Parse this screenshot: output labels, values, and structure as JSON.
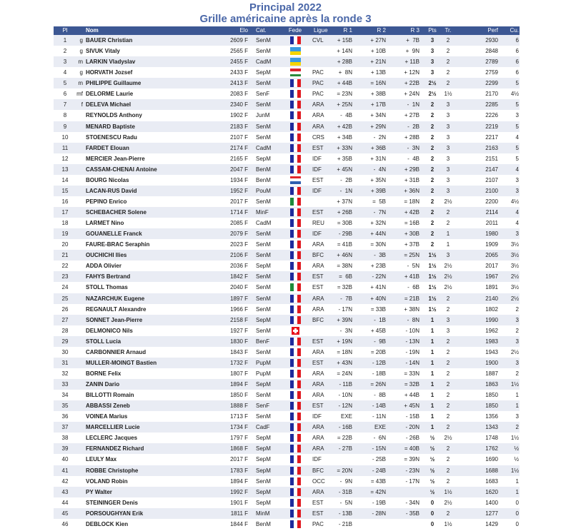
{
  "title": "Principal 2022",
  "subtitle": "Grille américaine après la ronde 3",
  "columns": {
    "pl": "Pl",
    "nom": "Nom",
    "elo": "Elo",
    "cat": "Cat.",
    "fede": "Fede",
    "ligue": "Ligue",
    "r1": "R 1",
    "r2": "R 2",
    "r3": "R 3",
    "pts": "Pts",
    "tr": "Tr.",
    "perf": "Perf",
    "cu": "Cu."
  },
  "rows": [
    {
      "pl": "1",
      "titre": "g",
      "nom": "BAUER Christian",
      "elo": "2609 F",
      "cat": "SenM",
      "fede": "FRA",
      "ligue": "CVL",
      "r1": "+ 15B",
      "r2": "+ 27N",
      "r3": "+  7B",
      "pts": "3",
      "tr": "2",
      "perf": "2930",
      "cu": "6"
    },
    {
      "pl": "2",
      "titre": "g",
      "nom": "SIVUK Vitaly",
      "elo": "2565 F",
      "cat": "SenM",
      "fede": "UKR",
      "ligue": "",
      "r1": "+ 14N",
      "r2": "+ 10B",
      "r3": "+  9N",
      "pts": "3",
      "tr": "2",
      "perf": "2848",
      "cu": "6"
    },
    {
      "pl": "3",
      "titre": "m",
      "nom": "LARKIN Vladyslav",
      "elo": "2455 F",
      "cat": "CadM",
      "fede": "UKR",
      "ligue": "",
      "r1": "+ 28B",
      "r2": "+ 21N",
      "r3": "+ 11B",
      "pts": "3",
      "tr": "2",
      "perf": "2789",
      "cu": "6"
    },
    {
      "pl": "4",
      "titre": "g",
      "nom": "HORVATH Jozsef",
      "elo": "2433 F",
      "cat": "SepM",
      "fede": "HUN",
      "ligue": "PAC",
      "r1": "+  8N",
      "r2": "+ 13B",
      "r3": "+ 12N",
      "pts": "3",
      "tr": "2",
      "perf": "2759",
      "cu": "6"
    },
    {
      "pl": "5",
      "titre": "m",
      "nom": "PHILIPPE Guillaume",
      "elo": "2413 F",
      "cat": "SenM",
      "fede": "FRA",
      "ligue": "PAC",
      "r1": "+ 44B",
      "r2": "= 16N",
      "r3": "+ 22B",
      "pts": "2½",
      "tr": "2",
      "perf": "2299",
      "cu": "5"
    },
    {
      "pl": "6",
      "titre": "mf",
      "nom": "DELORME Laurie",
      "elo": "2083 F",
      "cat": "SenF",
      "fede": "FRA",
      "ligue": "PAC",
      "r1": "= 23N",
      "r2": "+ 38B",
      "r3": "+ 24N",
      "pts": "2½",
      "tr": "1½",
      "perf": "2170",
      "cu": "4½"
    },
    {
      "pl": "7",
      "titre": "f",
      "nom": "DELEVA Michael",
      "elo": "2340 F",
      "cat": "SenM",
      "fede": "FRA",
      "ligue": "ARA",
      "r1": "+ 25N",
      "r2": "+ 17B",
      "r3": "-  1N",
      "pts": "2",
      "tr": "3",
      "perf": "2285",
      "cu": "5"
    },
    {
      "pl": "8",
      "titre": "",
      "nom": "REYNOLDS Anthony",
      "elo": "1902 F",
      "cat": "JunM",
      "fede": "FRA",
      "ligue": "ARA",
      "r1": "-  4B",
      "r2": "+ 34N",
      "r3": "+ 27B",
      "pts": "2",
      "tr": "3",
      "perf": "2226",
      "cu": "3"
    },
    {
      "pl": "9",
      "titre": "",
      "nom": "MENARD Baptiste",
      "elo": "2183 F",
      "cat": "SenM",
      "fede": "FRA",
      "ligue": "ARA",
      "r1": "+ 42B",
      "r2": "+ 29N",
      "r3": "-  2B",
      "pts": "2",
      "tr": "3",
      "perf": "2219",
      "cu": "5"
    },
    {
      "pl": "10",
      "titre": "",
      "nom": "STOENESCU Radu",
      "elo": "2107 F",
      "cat": "SenM",
      "fede": "FRA",
      "ligue": "CRS",
      "r1": "+ 34B",
      "r2": "-  2N",
      "r3": "+ 28B",
      "pts": "2",
      "tr": "3",
      "perf": "2217",
      "cu": "4"
    },
    {
      "pl": "11",
      "titre": "",
      "nom": "FARDET Elouan",
      "elo": "2174 F",
      "cat": "CadM",
      "fede": "FRA",
      "ligue": "EST",
      "r1": "+ 33N",
      "r2": "+ 36B",
      "r3": "-  3N",
      "pts": "2",
      "tr": "3",
      "perf": "2163",
      "cu": "5"
    },
    {
      "pl": "12",
      "titre": "",
      "nom": "MERCIER Jean-Pierre",
      "elo": "2165 F",
      "cat": "SepM",
      "fede": "FRA",
      "ligue": "IDF",
      "r1": "+ 35B",
      "r2": "+ 31N",
      "r3": "-  4B",
      "pts": "2",
      "tr": "3",
      "perf": "2151",
      "cu": "5"
    },
    {
      "pl": "13",
      "titre": "",
      "nom": "CASSAM-CHENAI Antoine",
      "elo": "2047 F",
      "cat": "BenM",
      "fede": "FRA",
      "ligue": "IDF",
      "r1": "+ 45N",
      "r2": "-  4N",
      "r3": "+ 29B",
      "pts": "2",
      "tr": "3",
      "perf": "2147",
      "cu": "4"
    },
    {
      "pl": "14",
      "titre": "",
      "nom": "BOURG Nicolas",
      "elo": "1934 F",
      "cat": "BenM",
      "fede": "NED",
      "ligue": "EST",
      "r1": "-  2B",
      "r2": "+ 35N",
      "r3": "+ 31B",
      "pts": "2",
      "tr": "3",
      "perf": "2107",
      "cu": "3"
    },
    {
      "pl": "15",
      "titre": "",
      "nom": "LACAN-RUS David",
      "elo": "1952 F",
      "cat": "PouM",
      "fede": "FRA",
      "ligue": "IDF",
      "r1": "-  1N",
      "r2": "+ 39B",
      "r3": "+ 36N",
      "pts": "2",
      "tr": "3",
      "perf": "2100",
      "cu": "3"
    },
    {
      "pl": "16",
      "titre": "",
      "nom": "PEPINO Enrico",
      "elo": "2017 F",
      "cat": "SenM",
      "fede": "ITA",
      "ligue": "",
      "r1": "+ 37N",
      "r2": "=  5B",
      "r3": "= 18N",
      "pts": "2",
      "tr": "2½",
      "perf": "2200",
      "cu": "4½"
    },
    {
      "pl": "17",
      "titre": "",
      "nom": "SCHEBACHER Solene",
      "elo": "1714 F",
      "cat": "MinF",
      "fede": "FRA",
      "ligue": "EST",
      "r1": "+ 26B",
      "r2": "-  7N",
      "r3": "+ 42B",
      "pts": "2",
      "tr": "2",
      "perf": "2114",
      "cu": "4"
    },
    {
      "pl": "18",
      "titre": "",
      "nom": "LARMET Nino",
      "elo": "2085 F",
      "cat": "CadM",
      "fede": "FRA",
      "ligue": "REU",
      "r1": "= 30B",
      "r2": "+ 32N",
      "r3": "= 16B",
      "pts": "2",
      "tr": "2",
      "perf": "2011",
      "cu": "4"
    },
    {
      "pl": "19",
      "titre": "",
      "nom": "GOUANELLE Franck",
      "elo": "2079 F",
      "cat": "SenM",
      "fede": "FRA",
      "ligue": "IDF",
      "r1": "- 29B",
      "r2": "+ 44N",
      "r3": "+ 30B",
      "pts": "2",
      "tr": "1",
      "perf": "1980",
      "cu": "3"
    },
    {
      "pl": "20",
      "titre": "",
      "nom": "FAURE-BRAC Seraphin",
      "elo": "2023 F",
      "cat": "SenM",
      "fede": "FRA",
      "ligue": "ARA",
      "r1": "= 41B",
      "r2": "= 30N",
      "r3": "+ 37B",
      "pts": "2",
      "tr": "1",
      "perf": "1909",
      "cu": "3½"
    },
    {
      "pl": "21",
      "titre": "",
      "nom": "OUCHICHI Ilies",
      "elo": "2106 F",
      "cat": "SenM",
      "fede": "FRA",
      "ligue": "BFC",
      "r1": "+ 46N",
      "r2": "-  3B",
      "r3": "= 25N",
      "pts": "1½",
      "tr": "3",
      "perf": "2065",
      "cu": "3½"
    },
    {
      "pl": "22",
      "titre": "",
      "nom": "ADDA Olivier",
      "elo": "2036 F",
      "cat": "SepM",
      "fede": "FRA",
      "ligue": "ARA",
      "r1": "= 38N",
      "r2": "+ 23B",
      "r3": "-  5N",
      "pts": "1½",
      "tr": "2½",
      "perf": "2017",
      "cu": "3½"
    },
    {
      "pl": "23",
      "titre": "",
      "nom": "FAHYS Bertrand",
      "elo": "1842 F",
      "cat": "SenM",
      "fede": "FRA",
      "ligue": "EST",
      "r1": "=  6B",
      "r2": "- 22N",
      "r3": "+ 41B",
      "pts": "1½",
      "tr": "2½",
      "perf": "1967",
      "cu": "2½"
    },
    {
      "pl": "24",
      "titre": "",
      "nom": "STOLL Thomas",
      "elo": "2040 F",
      "cat": "SenM",
      "fede": "ITA",
      "ligue": "EST",
      "r1": "= 32B",
      "r2": "+ 41N",
      "r3": "-  6B",
      "pts": "1½",
      "tr": "2½",
      "perf": "1891",
      "cu": "3½"
    },
    {
      "pl": "25",
      "titre": "",
      "nom": "NAZARCHUK Eugene",
      "elo": "1897 F",
      "cat": "SenM",
      "fede": "FRA",
      "ligue": "ARA",
      "r1": "-  7B",
      "r2": "+ 40N",
      "r3": "= 21B",
      "pts": "1½",
      "tr": "2",
      "perf": "2140",
      "cu": "2½"
    },
    {
      "pl": "26",
      "titre": "",
      "nom": "REGNAULT Alexandre",
      "elo": "1966 F",
      "cat": "SenM",
      "fede": "FRA",
      "ligue": "ARA",
      "r1": "- 17N",
      "r2": "= 33B",
      "r3": "+ 38N",
      "pts": "1½",
      "tr": "2",
      "perf": "1802",
      "cu": "2"
    },
    {
      "pl": "27",
      "titre": "",
      "nom": "SONNET Jean-Pierre",
      "elo": "2158 F",
      "cat": "SepM",
      "fede": "FRA",
      "ligue": "BFC",
      "r1": "+ 39N",
      "r2": "-  1B",
      "r3": "-  8N",
      "pts": "1",
      "tr": "3",
      "perf": "1990",
      "cu": "3"
    },
    {
      "pl": "28",
      "titre": "",
      "nom": "DELMONICO Nils",
      "elo": "1927 F",
      "cat": "SenM",
      "fede": "SUI",
      "ligue": "",
      "r1": "-  3N",
      "r2": "+ 45B",
      "r3": "- 10N",
      "pts": "1",
      "tr": "3",
      "perf": "1962",
      "cu": "2"
    },
    {
      "pl": "29",
      "titre": "",
      "nom": "STOLL Lucia",
      "elo": "1830 F",
      "cat": "BenF",
      "fede": "FRA",
      "ligue": "EST",
      "r1": "+ 19N",
      "r2": "-  9B",
      "r3": "- 13N",
      "pts": "1",
      "tr": "2",
      "perf": "1983",
      "cu": "3"
    },
    {
      "pl": "30",
      "titre": "",
      "nom": "CARBONNIER Arnaud",
      "elo": "1843 F",
      "cat": "SenM",
      "fede": "FRA",
      "ligue": "ARA",
      "r1": "= 18N",
      "r2": "= 20B",
      "r3": "- 19N",
      "pts": "1",
      "tr": "2",
      "perf": "1943",
      "cu": "2½"
    },
    {
      "pl": "31",
      "titre": "",
      "nom": "MULLER-MOINGT Bastien",
      "elo": "1732 F",
      "cat": "PupM",
      "fede": "FRA",
      "ligue": "EST",
      "r1": "+ 43N",
      "r2": "- 12B",
      "r3": "- 14N",
      "pts": "1",
      "tr": "2",
      "perf": "1900",
      "cu": "3"
    },
    {
      "pl": "32",
      "titre": "",
      "nom": "BORNE Felix",
      "elo": "1807 F",
      "cat": "PupM",
      "fede": "FRA",
      "ligue": "ARA",
      "r1": "= 24N",
      "r2": "- 18B",
      "r3": "= 33N",
      "pts": "1",
      "tr": "2",
      "perf": "1887",
      "cu": "2"
    },
    {
      "pl": "33",
      "titre": "",
      "nom": "ZANIN Dario",
      "elo": "1894 F",
      "cat": "SepM",
      "fede": "FRA",
      "ligue": "ARA",
      "r1": "- 11B",
      "r2": "= 26N",
      "r3": "= 32B",
      "pts": "1",
      "tr": "2",
      "perf": "1863",
      "cu": "1½"
    },
    {
      "pl": "34",
      "titre": "",
      "nom": "BILLOTTI Romain",
      "elo": "1850 F",
      "cat": "SenM",
      "fede": "FRA",
      "ligue": "ARA",
      "r1": "- 10N",
      "r2": "-  8B",
      "r3": "+ 44B",
      "pts": "1",
      "tr": "2",
      "perf": "1850",
      "cu": "1"
    },
    {
      "pl": "35",
      "titre": "",
      "nom": "ABBASSI Zeneb",
      "elo": "1888 F",
      "cat": "SenF",
      "fede": "FRA",
      "ligue": "EST",
      "r1": "- 12N",
      "r2": "- 14B",
      "r3": "+ 45N",
      "pts": "1",
      "tr": "2",
      "perf": "1850",
      "cu": "1"
    },
    {
      "pl": "36",
      "titre": "",
      "nom": "VOINEA Marius",
      "elo": "1713 F",
      "cat": "SenM",
      "fede": "FRA",
      "ligue": "IDF",
      "r1": "EXE",
      "r2": "- 11N",
      "r3": "- 15B",
      "pts": "1",
      "tr": "2",
      "perf": "1356",
      "cu": "3"
    },
    {
      "pl": "37",
      "titre": "",
      "nom": "MARCELLIER Lucie",
      "elo": "1734 F",
      "cat": "CadF",
      "fede": "FRA",
      "ligue": "ARA",
      "r1": "- 16B",
      "r2": "EXE",
      "r3": "- 20N",
      "pts": "1",
      "tr": "2",
      "perf": "1343",
      "cu": "2"
    },
    {
      "pl": "38",
      "titre": "",
      "nom": "LECLERC Jacques",
      "elo": "1797 F",
      "cat": "SepM",
      "fede": "FRA",
      "ligue": "ARA",
      "r1": "= 22B",
      "r2": "-  6N",
      "r3": "- 26B",
      "pts": "½",
      "tr": "2½",
      "perf": "1748",
      "cu": "1½"
    },
    {
      "pl": "39",
      "titre": "",
      "nom": "FERNANDEZ Richard",
      "elo": "1868 F",
      "cat": "SepM",
      "fede": "FRA",
      "ligue": "ARA",
      "r1": "- 27B",
      "r2": "- 15N",
      "r3": "= 40B",
      "pts": "½",
      "tr": "2",
      "perf": "1762",
      "cu": "½"
    },
    {
      "pl": "40",
      "titre": "",
      "nom": "LEULY Max",
      "elo": "2017 F",
      "cat": "SepM",
      "fede": "FRA",
      "ligue": "IDF",
      "r1": "",
      "r2": "- 25B",
      "r3": "= 39N",
      "pts": "½",
      "tr": "2",
      "perf": "1690",
      "cu": "½"
    },
    {
      "pl": "41",
      "titre": "",
      "nom": "ROBBE Christophe",
      "elo": "1783 F",
      "cat": "SepM",
      "fede": "FRA",
      "ligue": "BFC",
      "r1": "= 20N",
      "r2": "- 24B",
      "r3": "- 23N",
      "pts": "½",
      "tr": "2",
      "perf": "1688",
      "cu": "1½"
    },
    {
      "pl": "42",
      "titre": "",
      "nom": "VOLAND Robin",
      "elo": "1894 F",
      "cat": "SenM",
      "fede": "FRA",
      "ligue": "OCC",
      "r1": "-  9N",
      "r2": "= 43B",
      "r3": "- 17N",
      "pts": "½",
      "tr": "2",
      "perf": "1683",
      "cu": "1"
    },
    {
      "pl": "43",
      "titre": "",
      "nom": "PY Walter",
      "elo": "1992 F",
      "cat": "SepM",
      "fede": "FRA",
      "ligue": "ARA",
      "r1": "- 31B",
      "r2": "= 42N",
      "r3": "",
      "pts": "½",
      "tr": "1½",
      "perf": "1620",
      "cu": "1"
    },
    {
      "pl": "44",
      "titre": "",
      "nom": "STEININGER Denis",
      "elo": "1901 F",
      "cat": "SepM",
      "fede": "FRA",
      "ligue": "EST",
      "r1": "-  5N",
      "r2": "- 19B",
      "r3": "- 34N",
      "pts": "0",
      "tr": "2½",
      "perf": "1400",
      "cu": "0"
    },
    {
      "pl": "45",
      "titre": "",
      "nom": "PORSOUGHYAN Erik",
      "elo": "1811 F",
      "cat": "MinM",
      "fede": "FRA",
      "ligue": "EST",
      "r1": "- 13B",
      "r2": "- 28N",
      "r3": "- 35B",
      "pts": "0",
      "tr": "2",
      "perf": "1277",
      "cu": "0"
    },
    {
      "pl": "46",
      "titre": "",
      "nom": "DEBLOCK Kien",
      "elo": "1844 F",
      "cat": "BenM",
      "fede": "FRA",
      "ligue": "PAC",
      "r1": "- 21B",
      "r2": "",
      "r3": "",
      "pts": "0",
      "tr": "1½",
      "perf": "1429",
      "cu": "0"
    }
  ],
  "colors": {
    "header_bg": "#3c5793",
    "title": "#4a67a8",
    "alt_row": "#e9ecf4"
  }
}
